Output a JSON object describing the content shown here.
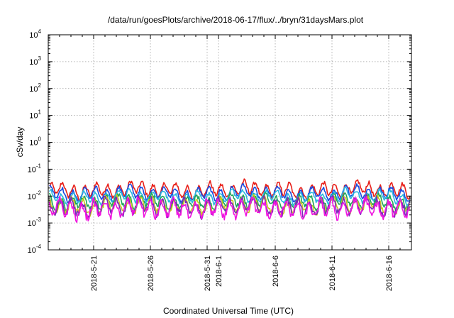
{
  "chart_data": {
    "type": "line",
    "title": "/data/run/goesPlots/archive/2018-06-17/flux/../bryn/31daysMars.plot",
    "xlabel": "Coordinated Universal Time (UTC)",
    "ylabel": "cSv/day",
    "yscale": "log",
    "ylim": [
      0.0001,
      10000
    ],
    "y_ticks": [
      {
        "base": "10",
        "exp": "-4"
      },
      {
        "base": "10",
        "exp": "-3"
      },
      {
        "base": "10",
        "exp": "-2"
      },
      {
        "base": "10",
        "exp": "-1"
      },
      {
        "base": "10",
        "exp": "0"
      },
      {
        "base": "10",
        "exp": "1"
      },
      {
        "base": "10",
        "exp": "2"
      },
      {
        "base": "10",
        "exp": "3"
      },
      {
        "base": "10",
        "exp": "4"
      }
    ],
    "xlim": [
      "2018-05-17",
      "2018-06-18"
    ],
    "x_ticks": [
      {
        "date": "2018-05-21",
        "label": "2018-5-21"
      },
      {
        "date": "2018-05-26",
        "label": "2018-5-26"
      },
      {
        "date": "2018-05-31",
        "label": "2018-5-31"
      },
      {
        "date": "2018-06-01",
        "label": "2018-6-1"
      },
      {
        "date": "2018-06-06",
        "label": "2018-6-6"
      },
      {
        "date": "2018-06-11",
        "label": "2018-6-11"
      },
      {
        "date": "2018-06-16",
        "label": "2018-6-16"
      }
    ],
    "grid": true,
    "series": [
      {
        "color": "#e8201a",
        "level": 0.017,
        "amp": 0.22,
        "noise": 0.08,
        "phase": 0.0
      },
      {
        "color": "#1a4be0",
        "level": 0.0125,
        "amp": 0.2,
        "noise": 0.07,
        "phase": 0.3
      },
      {
        "color": "#29b8e0",
        "level": 0.0095,
        "amp": 0.18,
        "noise": 0.07,
        "phase": 0.5
      },
      {
        "color": "#1ea65a",
        "level": 0.0062,
        "amp": 0.2,
        "noise": 0.09,
        "phase": 0.8
      },
      {
        "color": "#c8c81e",
        "level": 0.0045,
        "amp": 0.24,
        "noise": 0.12,
        "phase": 1.1
      },
      {
        "color": "#7a2ab8",
        "level": 0.0041,
        "amp": 0.26,
        "noise": 0.13,
        "phase": 1.4
      },
      {
        "color": "#f014e0",
        "level": 0.0033,
        "amp": 0.28,
        "noise": 0.14,
        "phase": 1.7
      }
    ]
  }
}
